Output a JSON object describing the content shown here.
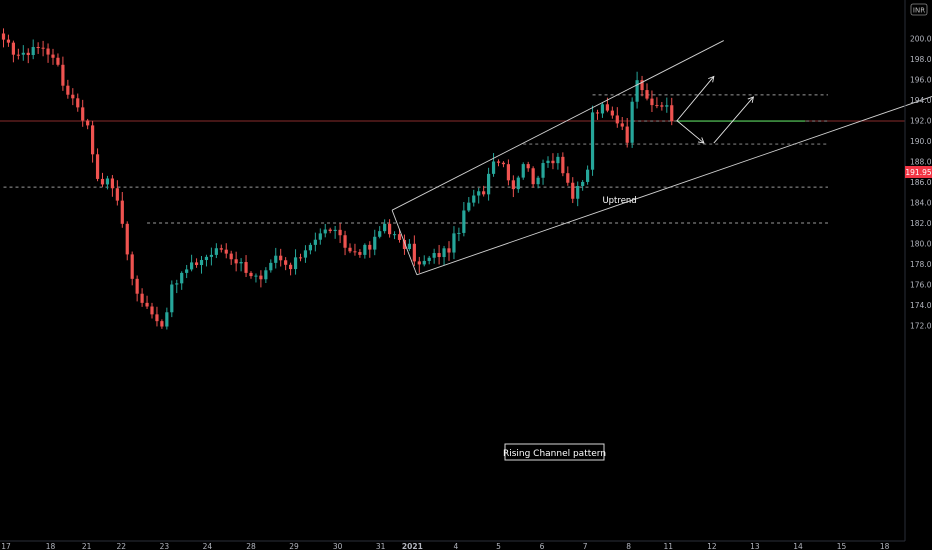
{
  "chart_data": {
    "type": "candlestick",
    "currency_badge": "INR",
    "y_axis": {
      "ticks": [
        172,
        174,
        176,
        178,
        180,
        182,
        184,
        186,
        188,
        190,
        192,
        194,
        196,
        198,
        200
      ],
      "range": [
        170.8,
        202.6
      ]
    },
    "x_axis": {
      "ticks": [
        {
          "label": "17",
          "idx": 0.5
        },
        {
          "label": "18",
          "idx": 9.5
        },
        {
          "label": "21",
          "idx": 16.8
        },
        {
          "label": "22",
          "idx": 23.8
        },
        {
          "label": "23",
          "idx": 32.5
        },
        {
          "label": "24",
          "idx": 41.2
        },
        {
          "label": "28",
          "idx": 50
        },
        {
          "label": "29",
          "idx": 58.7
        },
        {
          "label": "30",
          "idx": 67.5
        },
        {
          "label": "31",
          "idx": 76.2
        },
        {
          "label": "2021",
          "idx": 82.6
        },
        {
          "label": "4",
          "idx": 91.4
        },
        {
          "label": "5",
          "idx": 100
        },
        {
          "label": "6",
          "idx": 108.8
        },
        {
          "label": "7",
          "idx": 117.5
        },
        {
          "label": "8",
          "idx": 126.3
        },
        {
          "label": "11",
          "idx": 134.3
        },
        {
          "label": "12",
          "idx": 143.1
        },
        {
          "label": "13",
          "idx": 151.8
        },
        {
          "label": "14",
          "idx": 160.5
        },
        {
          "label": "15",
          "idx": 169.3
        },
        {
          "label": "18",
          "idx": 178
        }
      ]
    },
    "candle_count": 136,
    "keyframes": [
      [
        0,
        199.5
      ],
      [
        4,
        198.2
      ],
      [
        6,
        199.3
      ],
      [
        10,
        198.5
      ],
      [
        12,
        195.5
      ],
      [
        15,
        193.5
      ],
      [
        17,
        191.3
      ],
      [
        19,
        186.5
      ],
      [
        22,
        185.7
      ],
      [
        24,
        182.0
      ],
      [
        26,
        176.5
      ],
      [
        28,
        174.0
      ],
      [
        30,
        173.5
      ],
      [
        32,
        172.0
      ],
      [
        34,
        175.5
      ],
      [
        36,
        177.0
      ],
      [
        40,
        178.5
      ],
      [
        44,
        179.5
      ],
      [
        48,
        178.0
      ],
      [
        52,
        176.2
      ],
      [
        55,
        178.5
      ],
      [
        58,
        177.5
      ],
      [
        62,
        180.2
      ],
      [
        66,
        181.5
      ],
      [
        70,
        179.2
      ],
      [
        74,
        179.5
      ],
      [
        77,
        182.0
      ],
      [
        80,
        180.0
      ],
      [
        82,
        179.5
      ],
      [
        84,
        177.8
      ],
      [
        86,
        178.5
      ],
      [
        90,
        179.5
      ],
      [
        92,
        181.5
      ],
      [
        94,
        184.0
      ],
      [
        97,
        185.2
      ],
      [
        99,
        188.5
      ],
      [
        101,
        187.8
      ],
      [
        103,
        185.5
      ],
      [
        105,
        188.0
      ],
      [
        107,
        186.2
      ],
      [
        110,
        188.0
      ],
      [
        112,
        188.6
      ],
      [
        114,
        186.0
      ],
      [
        115,
        184.5
      ],
      [
        117,
        185.8
      ],
      [
        118,
        187.3
      ],
      [
        119,
        192.6
      ],
      [
        121,
        193.2
      ],
      [
        123,
        192.4
      ],
      [
        125,
        191.6
      ],
      [
        126,
        190.3
      ],
      [
        127,
        193.5
      ],
      [
        128,
        196.4
      ],
      [
        130,
        194.5
      ],
      [
        132,
        193.0
      ],
      [
        134,
        193.6
      ],
      [
        135,
        191.95
      ]
    ],
    "price_line": {
      "value": 191.95,
      "label": "191.95"
    },
    "horizontal_levels": [
      {
        "y": 185.5,
        "from_idx": 0,
        "to_idx": 191
      },
      {
        "y": 182.0,
        "from_idx": 29,
        "to_idx": 191
      },
      {
        "y": 194.5,
        "from_idx": 119,
        "to_idx": 191
      },
      {
        "y": 189.7,
        "from_idx": 105,
        "to_idx": 191
      },
      {
        "y": 191.95,
        "from_idx": 127,
        "to_idx": 191
      }
    ],
    "support_segment": {
      "y": 191.95,
      "from_idx": 136,
      "to_idx": 162
    },
    "channel": {
      "lower": [
        [
          83.5,
          176.95
        ],
        [
          190,
          194.75
        ]
      ],
      "upper": [
        [
          78.5,
          183.25
        ],
        [
          145.5,
          199.8
        ]
      ],
      "left_edge": [
        [
          78.5,
          183.25
        ],
        [
          83.5,
          176.95
        ]
      ]
    },
    "arrows": [
      [
        [
          136,
          191.95
        ],
        [
          143.5,
          196.3
        ]
      ],
      [
        [
          143.5,
          189.8
        ],
        [
          151.5,
          194.3
        ]
      ],
      [
        [
          136,
          192.0
        ],
        [
          141.5,
          189.8
        ]
      ]
    ],
    "annotations": {
      "uptrend": "Uptrend",
      "pattern_title": "Rising Channel pattern"
    }
  }
}
